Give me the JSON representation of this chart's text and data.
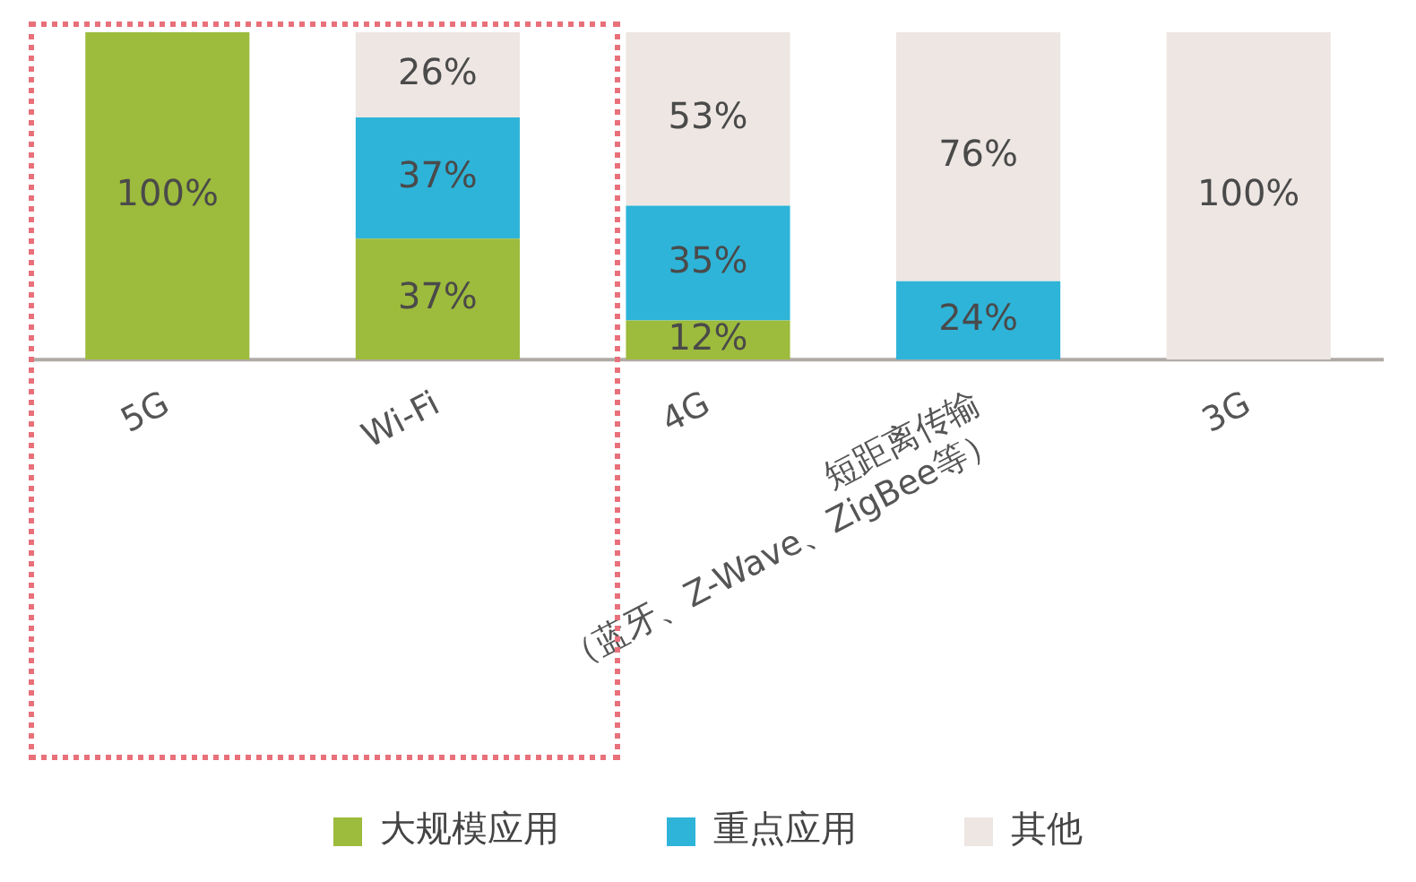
{
  "chart_data": {
    "type": "bar",
    "stacked": true,
    "legend": "bottom",
    "grid": false,
    "categories": [
      "5G",
      "Wi-Fi",
      "4G",
      "短距离传输\n（蓝牙、Z-Wave、ZigBee等）",
      "3G"
    ],
    "series": [
      {
        "name": "大规模应用",
        "color": "#9dbb3c",
        "values": [
          100,
          37,
          12,
          0,
          0
        ],
        "value_labels": [
          "100%",
          "37%",
          "12%",
          null,
          null
        ]
      },
      {
        "name": "重点应用",
        "color": "#2eb4d8",
        "values": [
          0,
          37,
          35,
          24,
          0
        ],
        "value_labels": [
          null,
          "37%",
          "35%",
          "24%",
          null
        ]
      },
      {
        "name": "其他",
        "color": "#ede6e2",
        "values": [
          0,
          26,
          53,
          76,
          100
        ],
        "value_labels": [
          null,
          "26%",
          "53%",
          "76%",
          "100%"
        ]
      }
    ]
  }
}
